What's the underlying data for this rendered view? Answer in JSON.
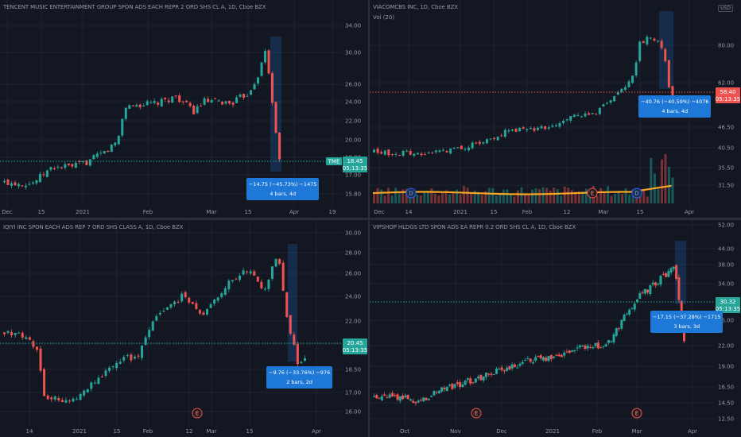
{
  "colors": {
    "up": "#26a69a",
    "down": "#ef5350",
    "bg": "#131722",
    "grid": "#1f2331",
    "measure": "#1e78d7",
    "sma": "#f5a623"
  },
  "panes": [
    {
      "id": "tme",
      "title": "TENCENT MUSIC ENTERTAINMENT GROUP SPON ADS EACH REPR 2 ORD SHS CL A, 1D, Cboe BZX",
      "y_ticks": [
        "34.00",
        "30.00",
        "26.00",
        "24.00",
        "22.00",
        "20.00",
        "18.00",
        "17.00",
        "15.80"
      ],
      "x_ticks": [
        "Dec",
        "15",
        "2021",
        "Feb",
        "Mar",
        "15",
        "Apr",
        "19"
      ],
      "price_tag": {
        "symbol": "TME",
        "price": "18.45",
        "time": "05:13:35"
      },
      "measure": {
        "line1": "−14.75 (−45.73%) −1475",
        "line2": "4 bars, 4d"
      },
      "events": [
        "E"
      ]
    },
    {
      "id": "viac",
      "title": "VIACOMCBS INC, 1D, Cboe BZX",
      "vol_label": "Vol (20)",
      "currency": "USD",
      "y_ticks": [
        "80.00",
        "62.00",
        "46.50",
        "40.50",
        "35.50",
        "31.50"
      ],
      "x_ticks": [
        "Dec",
        "14",
        "2021",
        "15",
        "Feb",
        "12",
        "Mar",
        "15",
        "Apr"
      ],
      "price_tag": {
        "price": "58.40",
        "time": "05:13:35"
      },
      "measure": {
        "line1": "−40.76 (−40.59%) −4076",
        "line2": "4 bars, 4d"
      },
      "events": [
        "D",
        "E",
        "D"
      ]
    },
    {
      "id": "iq",
      "title": "IQIYI INC SPON EACH ADS REP 7 ORD SHS CLASS A, 1D, Cboe BZX",
      "y_ticks": [
        "30.00",
        "28.00",
        "26.00",
        "24.00",
        "22.00",
        "20.00",
        "18.50",
        "17.00",
        "16.00"
      ],
      "x_ticks": [
        "14",
        "2021",
        "15",
        "Feb",
        "12",
        "Mar",
        "15",
        "Apr"
      ],
      "price_tag": {
        "price": "20.45",
        "time": "05:13:35"
      },
      "measure": {
        "line1": "−9.76 (−33.76%) −976",
        "line2": "2 bars, 2d"
      },
      "events": [
        "E"
      ]
    },
    {
      "id": "vips",
      "title": "VIPSHOP HLDGS LTD SPON ADS EA REPR 0.2 ORD SHS CL A, 1D, Cboe BZX",
      "y_ticks": [
        "52.00",
        "44.00",
        "38.00",
        "34.00",
        "26.00",
        "22.00",
        "19.00",
        "16.50",
        "14.50",
        "12.50"
      ],
      "x_ticks": [
        "Oct",
        "Nov",
        "Dec",
        "2021",
        "Feb",
        "Mar",
        "Apr"
      ],
      "price_tag": {
        "price": "30.32",
        "time": "05:13:35"
      },
      "measure": {
        "line1": "−17.15 (−37.28%) −1715",
        "line2": "3 bars, 3d"
      },
      "events": [
        "E",
        "E"
      ]
    }
  ],
  "chart_data": [
    {
      "type": "candlestick",
      "title": "TENCENT MUSIC ENTERTAINMENT GROUP SPON ADS EACH REPR 2 ORD SHS CL A, 1D, Cboe BZX",
      "path": [
        [
          0,
          16.6
        ],
        [
          0.08,
          16.5
        ],
        [
          0.14,
          18.4
        ],
        [
          0.2,
          18.5
        ],
        [
          0.24,
          19.0
        ],
        [
          0.3,
          20.4
        ],
        [
          0.33,
          21.6
        ],
        [
          0.35,
          25.6
        ],
        [
          0.45,
          26.0
        ],
        [
          0.5,
          26.8
        ],
        [
          0.55,
          25.0
        ],
        [
          0.58,
          26.2
        ],
        [
          0.66,
          26.0
        ],
        [
          0.71,
          27.2
        ],
        [
          0.74,
          29.5
        ],
        [
          0.76,
          32.3
        ],
        [
          0.78,
          26.0
        ],
        [
          0.8,
          19.0
        ],
        [
          0.8,
          18.45
        ]
      ]
    },
    {
      "type": "candlestick",
      "title": "VIACOMCBS INC, 1D, Cboe BZX",
      "path": [
        [
          0,
          35.0
        ],
        [
          0.1,
          34.5
        ],
        [
          0.2,
          35.2
        ],
        [
          0.3,
          38.0
        ],
        [
          0.4,
          42.0
        ],
        [
          0.45,
          48.0
        ],
        [
          0.5,
          47.0
        ],
        [
          0.6,
          50.0
        ],
        [
          0.68,
          56.0
        ],
        [
          0.72,
          55.0
        ],
        [
          0.8,
          66.0
        ],
        [
          0.86,
          78.0
        ],
        [
          0.88,
          95.0
        ],
        [
          0.92,
          99.0
        ],
        [
          0.96,
          92.0
        ],
        [
          0.98,
          64.0
        ],
        [
          1.0,
          58.4
        ]
      ]
    },
    {
      "type": "candlestick",
      "title": "IQIYI INC SPON EACH ADS REP 7 ORD SHS CLASS A, 1D, Cboe BZX",
      "path": [
        [
          0,
          22.5
        ],
        [
          0.06,
          22.2
        ],
        [
          0.1,
          21.0
        ],
        [
          0.12,
          17.3
        ],
        [
          0.2,
          16.9
        ],
        [
          0.26,
          18.3
        ],
        [
          0.34,
          20.2
        ],
        [
          0.4,
          20.6
        ],
        [
          0.46,
          24.0
        ],
        [
          0.54,
          25.5
        ],
        [
          0.6,
          23.8
        ],
        [
          0.66,
          26.2
        ],
        [
          0.72,
          27.6
        ],
        [
          0.78,
          26.0
        ],
        [
          0.82,
          28.8
        ],
        [
          0.85,
          23.0
        ],
        [
          0.88,
          20.0
        ],
        [
          0.9,
          20.45
        ]
      ]
    },
    {
      "type": "candlestick",
      "title": "VIPSHOP HLDGS LTD SPON ADS EA REPR 0.2 ORD SHS CL A, 1D, Cboe BZX",
      "path": [
        [
          0,
          17.8
        ],
        [
          0.08,
          17.5
        ],
        [
          0.12,
          16.6
        ],
        [
          0.16,
          17.0
        ],
        [
          0.2,
          19.0
        ],
        [
          0.3,
          21.0
        ],
        [
          0.4,
          23.5
        ],
        [
          0.5,
          25.8
        ],
        [
          0.56,
          26.0
        ],
        [
          0.62,
          27.6
        ],
        [
          0.68,
          29.0
        ],
        [
          0.72,
          28.0
        ],
        [
          0.76,
          32.5
        ],
        [
          0.82,
          39.0
        ],
        [
          0.9,
          43.8
        ],
        [
          0.94,
          46.0
        ],
        [
          0.96,
          35.0
        ],
        [
          0.97,
          30.32
        ]
      ]
    }
  ]
}
